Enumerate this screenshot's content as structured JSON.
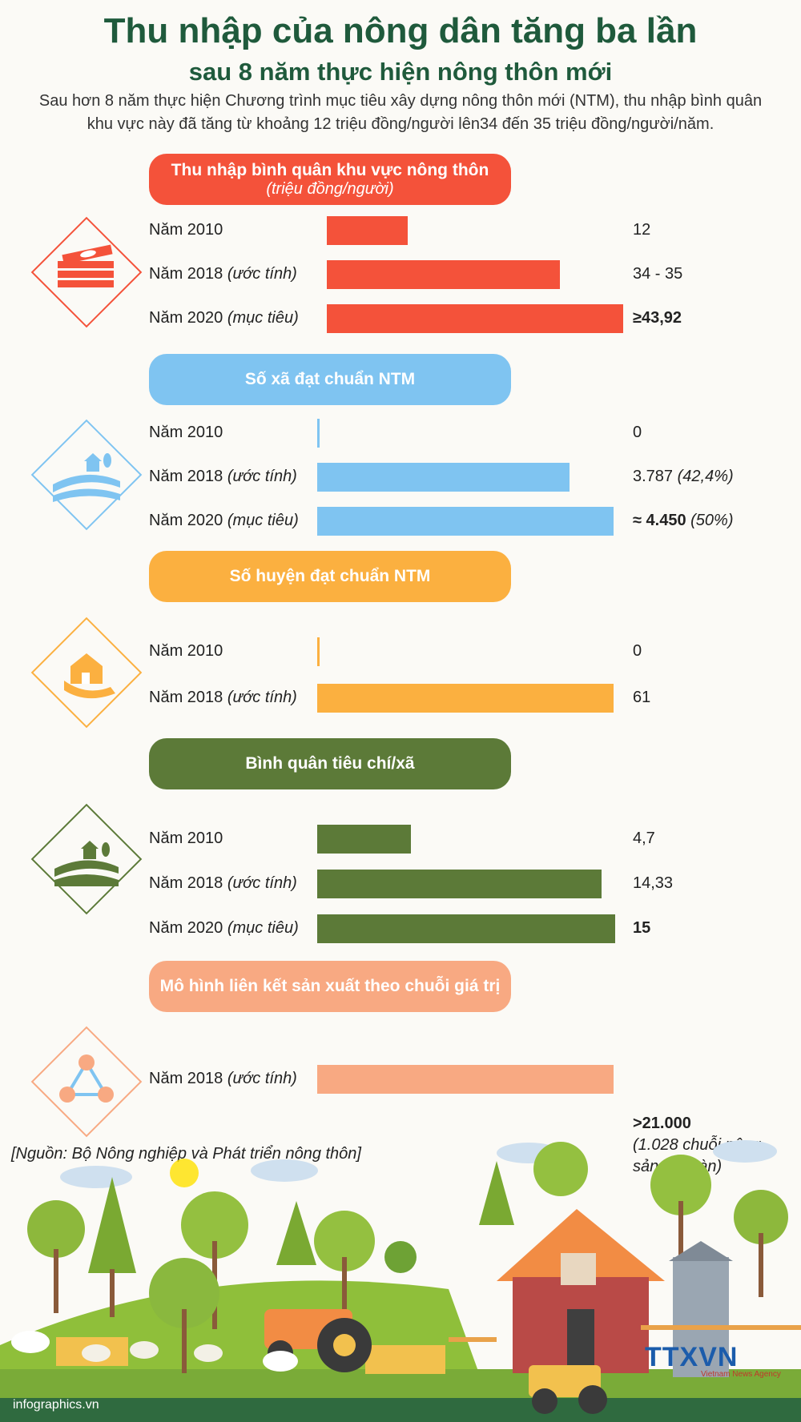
{
  "header": {
    "title": "Thu nhập của nông dân tăng ba lần",
    "subtitle": "sau 8 năm thực hiện nông thôn mới",
    "intro": "Sau hơn 8 năm thực hiện Chương trình mục tiêu xây dựng nông thôn mới (NTM), thu nhập bình quân khu vực này đã tăng từ khoảng 12 triệu đồng/người lên34 đến 35 triệu đồng/người/năm."
  },
  "colors": {
    "income": "#f4523a",
    "communes": "#7fc4f1",
    "districts": "#fbb040",
    "criteria": "#5c7a38",
    "chains": "#f8a982",
    "title": "#1f5a3c"
  },
  "chart_data": [
    {
      "type": "bar",
      "title": "Thu nhập bình quân khu vực nông thôn",
      "subtitle": "(triệu đồng/người)",
      "categories": [
        "Năm 2010",
        "Năm 2018",
        "Năm 2020"
      ],
      "category_notes": [
        "",
        "(ước tính)",
        "(mục tiêu)"
      ],
      "values": [
        12,
        34.5,
        43.92
      ],
      "value_labels": [
        "12",
        "34 - 35",
        "≥43,92"
      ]
    },
    {
      "type": "bar",
      "title": "Số xã đạt chuẩn NTM",
      "categories": [
        "Năm 2010",
        "Năm 2018",
        "Năm 2020"
      ],
      "category_notes": [
        "",
        "(ước tính)",
        "(mục tiêu)"
      ],
      "values": [
        0,
        3787,
        4450
      ],
      "value_labels": [
        "0",
        "3.787",
        "≈ 4.450"
      ],
      "value_notes": [
        "",
        "(42,4%)",
        "(50%)"
      ]
    },
    {
      "type": "bar",
      "title": "Số huyện đạt chuẩn NTM",
      "categories": [
        "Năm 2010",
        "Năm 2018"
      ],
      "category_notes": [
        "",
        "(ước tính)"
      ],
      "values": [
        0,
        61
      ],
      "value_labels": [
        "0",
        "61"
      ]
    },
    {
      "type": "bar",
      "title": "Bình quân tiêu chí/xã",
      "categories": [
        "Năm 2010",
        "Năm 2018",
        "Năm 2020"
      ],
      "category_notes": [
        "",
        "(ước tính)",
        "(mục tiêu)"
      ],
      "values": [
        4.7,
        14.33,
        15
      ],
      "value_labels": [
        "4,7",
        "14,33",
        "15"
      ]
    },
    {
      "type": "bar",
      "title": "Mô hình liên kết sản xuất theo chuỗi giá trị",
      "categories": [
        "Năm 2018"
      ],
      "category_notes": [
        "(ước tính)"
      ],
      "values": [
        21000
      ],
      "value_labels": [
        ">21.000"
      ],
      "value_notes": [
        "(1.028 chuỗi nông sản an toàn)"
      ]
    }
  ],
  "source": "[Nguồn: Bộ Nông nghiệp và Phát triển nông thôn]",
  "footer": {
    "site": "infographics.vn",
    "logo": "TTXVN",
    "logo_sub": "Vietnam News Agency"
  }
}
